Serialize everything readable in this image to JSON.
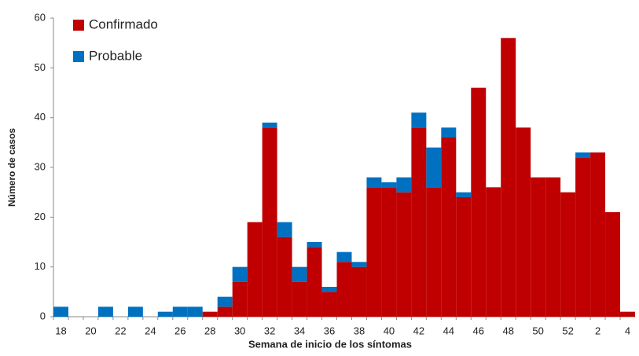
{
  "chart_data": {
    "type": "stacked_bar",
    "xlabel": "Semana de inicio de los síntomas",
    "ylabel": "Número de casos",
    "categories": [
      "18",
      null,
      "20",
      null,
      "22",
      null,
      "24",
      null,
      "26",
      null,
      "28",
      null,
      "30",
      null,
      "32",
      null,
      "34",
      null,
      "36",
      null,
      "38",
      null,
      "40",
      null,
      "42",
      null,
      "44",
      null,
      "46",
      null,
      "48",
      null,
      "50",
      null,
      "52",
      null,
      "2",
      null,
      "4"
    ],
    "series": [
      {
        "name": "Confirmado",
        "color": "#c00000",
        "values": [
          0,
          0,
          0,
          0,
          0,
          0,
          0,
          0,
          0,
          0,
          1,
          2,
          7,
          19,
          38,
          16,
          7,
          14,
          5,
          11,
          10,
          26,
          26,
          25,
          38,
          26,
          36,
          24,
          46,
          26,
          56,
          38,
          28,
          28,
          25,
          32,
          33,
          21,
          1
        ]
      },
      {
        "name": "Probable",
        "color": "#0070c0",
        "values": [
          2,
          0,
          0,
          2,
          0,
          2,
          0,
          1,
          2,
          2,
          0,
          2,
          3,
          0,
          1,
          3,
          3,
          1,
          1,
          2,
          1,
          2,
          1,
          3,
          3,
          8,
          2,
          1,
          0,
          0,
          0,
          0,
          0,
          0,
          0,
          1,
          0,
          0,
          0
        ]
      }
    ],
    "ylim": [
      0,
      60
    ],
    "yticks": [
      0,
      10,
      20,
      30,
      40,
      50,
      60
    ],
    "legend": "top-left"
  }
}
